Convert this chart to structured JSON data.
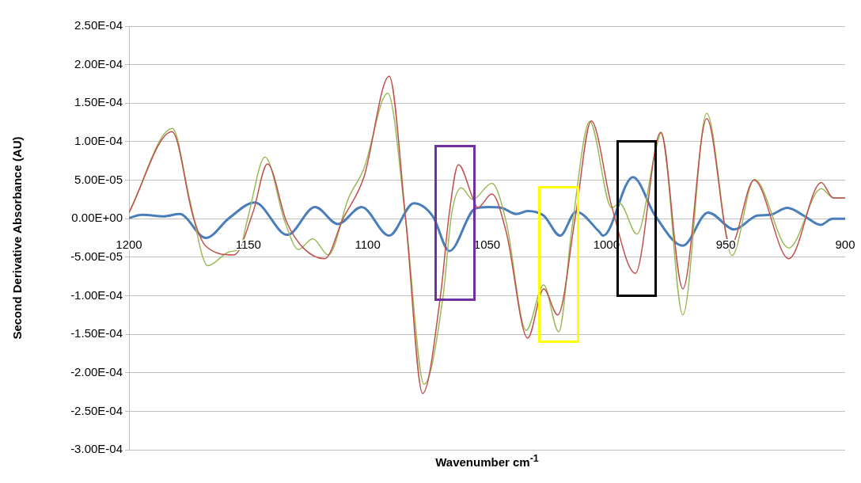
{
  "chart_data": {
    "type": "line",
    "xlabel": "Wavenumber cm$^{-1}$",
    "ylabel": "Second Derivative Absorbance (AU)",
    "xlim": [
      1200,
      900
    ],
    "xticks": [
      1200,
      1150,
      1100,
      1050,
      1000,
      950,
      900
    ],
    "ylim": [
      -0.0003,
      0.00025
    ],
    "yticks": [
      {
        "value": 0.00025,
        "label": "2.50E-04"
      },
      {
        "value": 0.0002,
        "label": "2.00E-04"
      },
      {
        "value": 0.00015,
        "label": "1.50E-04"
      },
      {
        "value": 0.0001,
        "label": "1.00E-04"
      },
      {
        "value": 5e-05,
        "label": "5.00E-05"
      },
      {
        "value": 0,
        "label": "0.00E+00"
      },
      {
        "value": -5e-05,
        "label": "-5.00E-05"
      },
      {
        "value": -0.0001,
        "label": "-1.00E-04"
      },
      {
        "value": -0.00015,
        "label": "-1.50E-04"
      },
      {
        "value": -0.0002,
        "label": "-2.00E-04"
      },
      {
        "value": -0.00025,
        "label": "-2.50E-04"
      },
      {
        "value": -0.0003,
        "label": "-3.00E-04"
      }
    ],
    "grid": "y",
    "marker": "none",
    "line_style": "solid",
    "series": [
      {
        "color": "#c0504d",
        "x": [
          1200,
          1182,
          1173,
          1168,
          1156,
          1148,
          1142,
          1134,
          1127,
          1118,
          1110.5,
          1101.6,
          1091,
          1084,
          1077,
          1069.4,
          1066,
          1062,
          1056,
          1054,
          1048,
          1042,
          1033,
          1026.3,
          1020.4,
          1013,
          1006.4,
          997.8,
          987.9,
          977.3,
          968,
          958,
          948,
          938.2,
          923.6,
          910,
          905,
          900
        ],
        "values": [
          8e-06,
          0.000113,
          1e-06,
          -3.5e-05,
          -4.7e-05,
          9e-06,
          7.1e-05,
          -4e-06,
          -3.8e-05,
          -5.2e-05,
          -1e-06,
          5.4e-05,
          0.000185,
          -4e-06,
          -0.000227,
          -9.7e-05,
          3e-06,
          7e-05,
          2.7e-05,
          1.4e-05,
          3.2e-05,
          -1.7e-05,
          -0.000155,
          -9.1e-05,
          -0.000125,
          3e-06,
          0.000127,
          1.6e-05,
          -7.1e-05,
          0.000112,
          -9.1e-05,
          0.00013,
          -3.5e-05,
          5e-05,
          -5.2e-05,
          4.7e-05,
          2.7e-05,
          2.7e-05
        ]
      },
      {
        "color": "#9bbb59",
        "x": [
          1200,
          1181.8,
          1174.5,
          1167,
          1158,
          1153.6,
          1150.3,
          1143,
          1134.7,
          1129,
          1123,
          1116.5,
          1108,
          1101.6,
          1091.6,
          1084,
          1076.4,
          1068.4,
          1065,
          1060.8,
          1056,
          1048,
          1042,
          1033.6,
          1026.3,
          1020,
          1014.4,
          1007,
          997.8,
          994.5,
          987.2,
          979.6,
          977,
          968,
          958,
          947.4,
          938,
          923.6,
          910,
          905,
          900
        ],
        "values": [
          8e-06,
          0.000117,
          2.4e-05,
          -6.1e-05,
          -4.3e-05,
          -3.8e-05,
          0,
          8e-05,
          -4e-06,
          -4e-05,
          -2.6e-05,
          -4.7e-05,
          2.7e-05,
          6.5e-05,
          0.000163,
          -4e-06,
          -0.000215,
          -0.0001,
          3e-06,
          4e-05,
          2.5e-05,
          4.6e-05,
          -4e-06,
          -0.000145,
          -8.6e-05,
          -0.000147,
          -1.1e-05,
          0.000126,
          1.4e-05,
          2e-05,
          -2e-05,
          8.6e-05,
          0.000112,
          -0.000125,
          0.000137,
          -4.8e-05,
          5.1e-05,
          -3.8e-05,
          3.9e-05,
          2.7e-05,
          2.7e-05
        ]
      },
      {
        "color": "#4a7ebb",
        "x": [
          1200,
          1194.4,
          1185.4,
          1178.8,
          1167.8,
          1158,
          1147.3,
          1133.7,
          1122,
          1112.5,
          1102.6,
          1091,
          1080.7,
          1072.7,
          1065.8,
          1055,
          1049.5,
          1044,
          1037.6,
          1033,
          1026.3,
          1019.4,
          1012.7,
          1003,
          1001.4,
          988.9,
          979.6,
          968,
          957.4,
          946.4,
          936.8,
          931.5,
          924.2,
          916.9,
          910.3,
          905.3,
          900
        ],
        "values": [
          1e-06,
          5e-06,
          3e-06,
          6e-06,
          -2.5e-05,
          1e-06,
          2.1e-05,
          -2.1e-05,
          1.5e-05,
          -7e-06,
          1.5e-05,
          -2.2e-05,
          2e-05,
          3e-06,
          -4.2e-05,
          1.3e-05,
          1.5e-05,
          1.4e-05,
          6e-06,
          1e-05,
          4e-06,
          -2.2e-05,
          9e-06,
          -1.7e-05,
          -2.2e-05,
          5.4e-05,
          4e-06,
          -3.5e-05,
          8e-06,
          -1.4e-05,
          4e-06,
          5e-06,
          1.4e-05,
          3e-06,
          -8e-06,
          0,
          0
        ]
      }
    ]
  }
}
